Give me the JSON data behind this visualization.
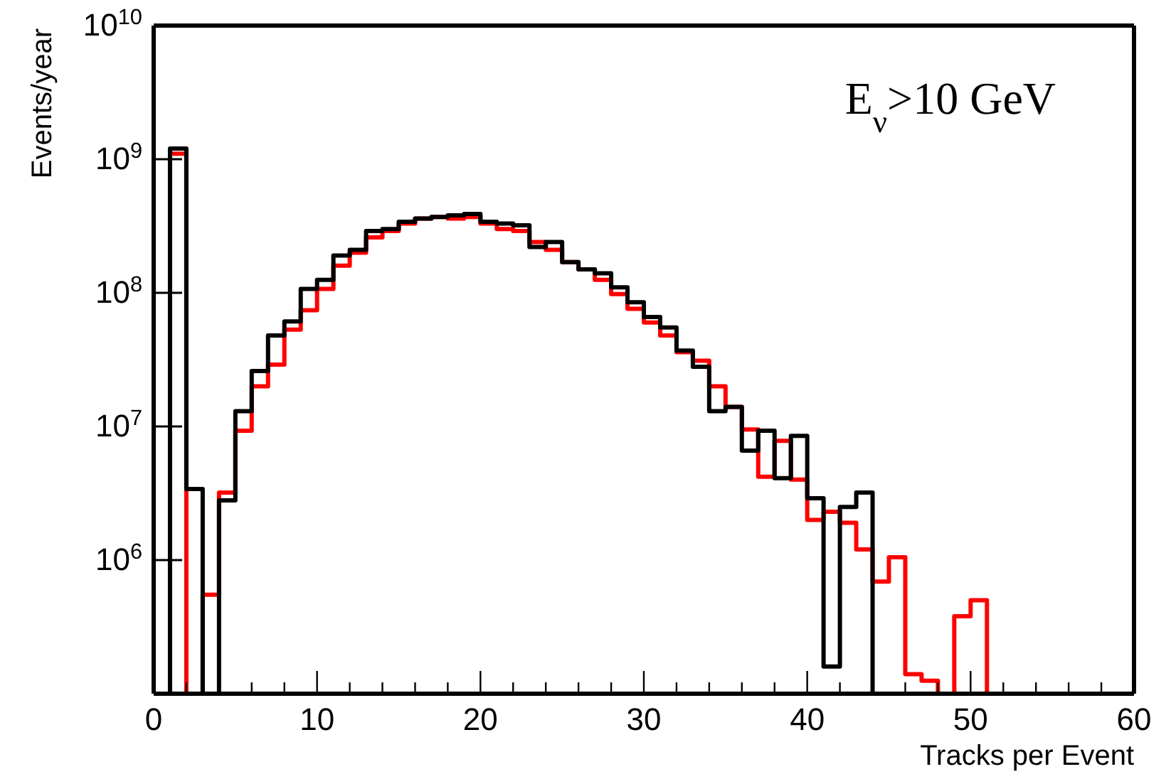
{
  "chart_data": {
    "type": "histogram",
    "xlabel": "Tracks per Event",
    "ylabel": "Events/year",
    "annotations": [
      "E$_{ν}$>10 GeV"
    ],
    "bins": [
      0,
      1,
      2,
      3,
      4,
      5,
      6,
      7,
      8,
      9,
      10,
      11,
      12,
      13,
      14,
      15,
      16,
      17,
      18,
      19,
      20,
      21,
      22,
      23,
      24,
      25,
      26,
      27,
      28,
      29,
      30,
      31,
      32,
      33,
      34,
      35,
      36,
      37,
      38,
      39,
      40,
      41,
      42,
      43,
      44,
      45,
      46,
      47,
      48,
      49,
      50,
      51,
      52,
      53,
      54,
      55,
      56,
      57,
      58,
      59,
      60
    ],
    "series": [
      {
        "color": "#ff0000",
        "values": [
          null,
          1100000000.0,
          null,
          550000.0,
          3200000.0,
          9300000.0,
          20000000.0,
          29000000.0,
          53000000.0,
          74000000.0,
          107000000.0,
          160000000.0,
          200000000.0,
          260000000.0,
          290000000.0,
          330000000.0,
          360000000.0,
          370000000.0,
          360000000.0,
          370000000.0,
          330000000.0,
          300000000.0,
          290000000.0,
          240000000.0,
          210000000.0,
          170000000.0,
          150000000.0,
          125000000.0,
          98000000.0,
          76000000.0,
          60000000.0,
          48000000.0,
          36000000.0,
          31000000.0,
          20000000.0,
          14000000.0,
          9500000.0,
          4200000.0,
          7800000.0,
          4000000.0,
          2000000.0,
          2300000.0,
          1900000.0,
          1200000.0,
          690000.0,
          1050000.0,
          140000.0,
          125000.0,
          null,
          380000.0,
          500000.0,
          null,
          null,
          null,
          null,
          null,
          null,
          null,
          null,
          null
        ]
      },
      {
        "color": "#000000",
        "values": [
          null,
          1200000000.0,
          3400000.0,
          null,
          2800000.0,
          13000000.0,
          26000000.0,
          48000000.0,
          61000000.0,
          107000000.0,
          125000000.0,
          190000000.0,
          210000000.0,
          290000000.0,
          300000000.0,
          340000000.0,
          360000000.0,
          370000000.0,
          380000000.0,
          390000000.0,
          340000000.0,
          330000000.0,
          320000000.0,
          220000000.0,
          240000000.0,
          170000000.0,
          150000000.0,
          140000000.0,
          110000000.0,
          85000000.0,
          66000000.0,
          55000000.0,
          37000000.0,
          28000000.0,
          13000000.0,
          14000000.0,
          6600000.0,
          9300000.0,
          4100000.0,
          8500000.0,
          2900000.0,
          160000.0,
          2500000.0,
          3200000.0,
          null,
          null,
          null,
          null,
          null,
          null,
          null,
          null,
          null,
          null,
          null,
          null,
          null,
          null,
          null,
          null
        ]
      }
    ],
    "xlim": [
      0,
      60
    ],
    "xticks": [
      0,
      {
        "value": 2,
        "label": null
      },
      {
        "value": 4,
        "label": null
      },
      {
        "value": 6,
        "label": null
      },
      {
        "value": 8,
        "label": null
      },
      10,
      {
        "value": 12,
        "label": null
      },
      {
        "value": 14,
        "label": null
      },
      {
        "value": 16,
        "label": null
      },
      {
        "value": 18,
        "label": null
      },
      20,
      {
        "value": 22,
        "label": null
      },
      {
        "value": 24,
        "label": null
      },
      {
        "value": 26,
        "label": null
      },
      {
        "value": 28,
        "label": null
      },
      30,
      {
        "value": 32,
        "label": null
      },
      {
        "value": 34,
        "label": null
      },
      {
        "value": 36,
        "label": null
      },
      {
        "value": 38,
        "label": null
      },
      40,
      {
        "value": 42,
        "label": null
      },
      {
        "value": 44,
        "label": null
      },
      {
        "value": 46,
        "label": null
      },
      {
        "value": 48,
        "label": null
      },
      50,
      {
        "value": 52,
        "label": null
      },
      {
        "value": 54,
        "label": null
      },
      {
        "value": 56,
        "label": null
      },
      {
        "value": 58,
        "label": null
      },
      60
    ],
    "log": true,
    "ylim": [
      100000,
      10000000000
    ],
    "yticks": [
      {
        "value": 1000000,
        "label": "10$^{6}$"
      },
      {
        "value": 10000000,
        "label": "10$^{7}$"
      },
      {
        "value": 100000000,
        "label": "10$^{8}$"
      },
      {
        "value": 1000000000,
        "label": "10$^{9}$"
      },
      {
        "value": 10000000000,
        "label": "10$^{10}$"
      }
    ],
    "grid": false
  }
}
